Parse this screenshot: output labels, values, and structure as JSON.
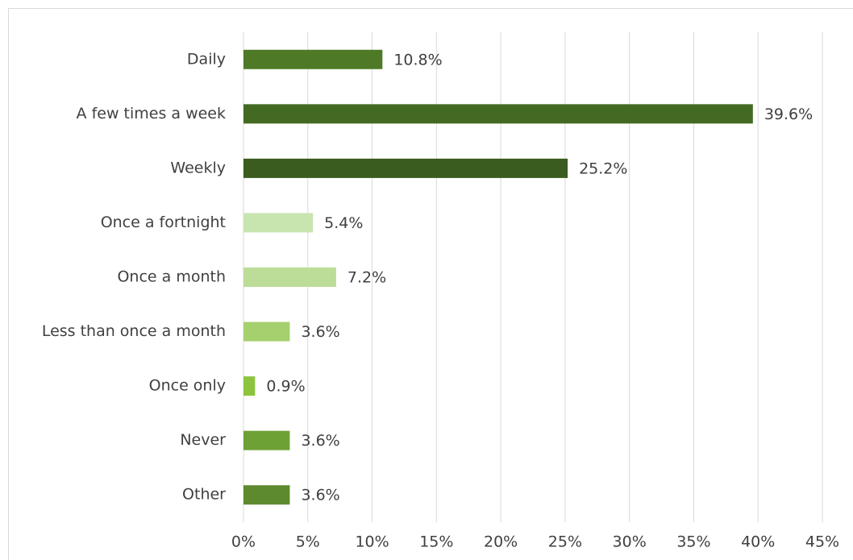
{
  "chart_data": {
    "type": "barh",
    "categories": [
      "Daily",
      "A few times a week",
      "Weekly",
      "Once a fortnight",
      "Once a month",
      "Less than once a month",
      "Once only",
      "Never",
      "Other"
    ],
    "values": [
      10.8,
      39.6,
      25.2,
      5.4,
      7.2,
      3.6,
      0.9,
      3.6,
      3.6
    ],
    "value_labels": [
      "10.8%",
      "39.6%",
      "25.2%",
      "5.4%",
      "7.2%",
      "3.6%",
      "0.9%",
      "3.6%",
      "3.6%"
    ],
    "colors": [
      "#4e7a27",
      "#436a22",
      "#3a5c1e",
      "#c8e5b0",
      "#bbdd98",
      "#a4d06e",
      "#8cc43f",
      "#6ea135",
      "#5d8a2e"
    ],
    "xlim": [
      0,
      45
    ],
    "xticks": [
      {
        "value": 0,
        "label": "0%"
      },
      {
        "value": 5,
        "label": "5%"
      },
      {
        "value": 10,
        "label": "10%"
      },
      {
        "value": 15,
        "label": "15%"
      },
      {
        "value": 20,
        "label": "20%"
      },
      {
        "value": 25,
        "label": "25%"
      },
      {
        "value": 30,
        "label": "30%"
      },
      {
        "value": 35,
        "label": "35%"
      },
      {
        "value": 40,
        "label": "40%"
      },
      {
        "value": 45,
        "label": "45%"
      }
    ],
    "grid": true
  }
}
